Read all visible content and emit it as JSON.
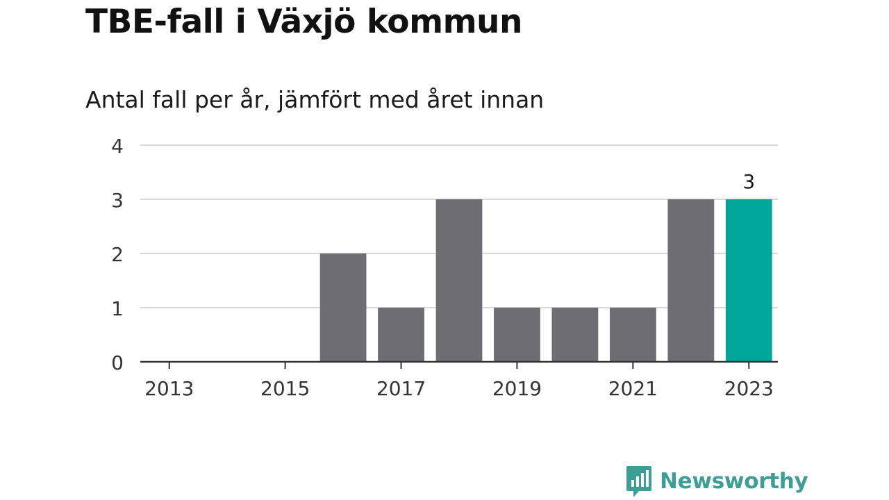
{
  "title": "TBE-fall i Växjö kommun",
  "subtitle": "Antal fall per år, jämfört med året innan",
  "brand": {
    "name": "Newsworthy",
    "icon": "newsworthy-logo-icon",
    "color": "#3e9d95"
  },
  "chart_data": {
    "type": "bar",
    "categories": [
      "2013",
      "2014",
      "2015",
      "2016",
      "2017",
      "2018",
      "2019",
      "2020",
      "2021",
      "2022",
      "2023"
    ],
    "values": [
      0,
      0,
      0,
      2,
      1,
      3,
      1,
      1,
      1,
      3,
      3
    ],
    "x_tick_labels": [
      "2013",
      "2015",
      "2017",
      "2019",
      "2021",
      "2023"
    ],
    "y_ticks": [
      0,
      1,
      2,
      3,
      4
    ],
    "ylim": [
      0,
      4
    ],
    "grid": true,
    "highlight_index": 10,
    "highlight_label": "3",
    "bar_color": "#6e6d73",
    "highlight_color": "#00a69a"
  }
}
